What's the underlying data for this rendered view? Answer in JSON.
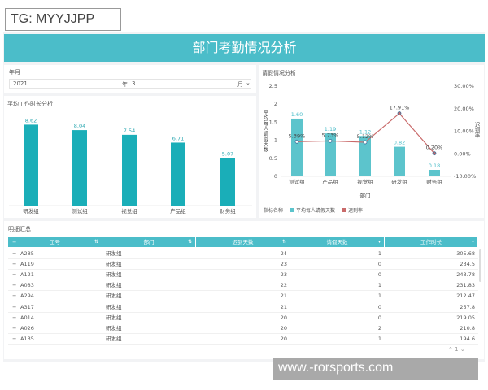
{
  "watermarks": {
    "top_left": "TG: MYYJJPP",
    "bottom_right": "www.-rorsports.com"
  },
  "header": {
    "title": "部门考勤情况分析"
  },
  "filter": {
    "label": "年月",
    "year": "2021",
    "year_unit": "年",
    "month": "3",
    "month_unit": "月"
  },
  "colors": {
    "accent": "#4bbdc9",
    "bar": "#1aaeb8",
    "bar2": "#5cc4cc",
    "line": "#c96a6a"
  },
  "chart_data": [
    {
      "type": "bar",
      "title": "平均工作时长分析",
      "categories": [
        "研发组",
        "测试组",
        "视觉组",
        "产品组",
        "财务组"
      ],
      "values": [
        8.62,
        8.04,
        7.54,
        6.71,
        5.07
      ],
      "ylim": [
        0,
        9
      ]
    },
    {
      "type": "bar+line",
      "title": "请假情况分析",
      "xlabel": "部门",
      "ylabel": "平均每人请假天数",
      "ylabel_right": "迟到率",
      "categories": [
        "测试组",
        "产品组",
        "视觉组",
        "研发组",
        "财务组"
      ],
      "yticks": [
        "0",
        "0.5",
        "1",
        "1.5",
        "2",
        "2.5"
      ],
      "ylim": [
        0,
        2.5
      ],
      "yticks_right": [
        "-10.00%",
        "0.00%",
        "10.00%",
        "20.00%",
        "30.00%"
      ],
      "ylim_right": [
        -10,
        30
      ],
      "legend_title": "指标名称",
      "series": [
        {
          "name": "平均每人请假天数",
          "type": "bar",
          "values": [
            1.6,
            1.19,
            1.12,
            0.82,
            0.18
          ],
          "labels": [
            "1.60",
            "1.19",
            "1.12",
            "0.82",
            "0.18"
          ]
        },
        {
          "name": "迟到率",
          "type": "line",
          "values": [
            5.39,
            5.73,
            5.12,
            17.91,
            0.2
          ],
          "labels": [
            "5.39%",
            "5.73%",
            "5.12%",
            "17.91%",
            "0.20%"
          ]
        }
      ],
      "legend": "bottom-left"
    }
  ],
  "table": {
    "title": "明细汇总",
    "columns": [
      "工号",
      "部门",
      "迟到天数",
      "请假天数",
      "工作时长"
    ],
    "rows": [
      [
        "A285",
        "研发组",
        "24",
        "1",
        "305.68"
      ],
      [
        "A119",
        "研发组",
        "23",
        "0",
        "234.5"
      ],
      [
        "A121",
        "研发组",
        "23",
        "0",
        "243.78"
      ],
      [
        "A083",
        "研发组",
        "22",
        "1",
        "231.83"
      ],
      [
        "A294",
        "研发组",
        "21",
        "1",
        "212.47"
      ],
      [
        "A317",
        "研发组",
        "21",
        "0",
        "257.8"
      ],
      [
        "A014",
        "研发组",
        "20",
        "0",
        "219.05"
      ],
      [
        "A026",
        "研发组",
        "20",
        "2",
        "210.8"
      ],
      [
        "A135",
        "研发组",
        "20",
        "1",
        "194.6"
      ]
    ],
    "page": "1"
  }
}
